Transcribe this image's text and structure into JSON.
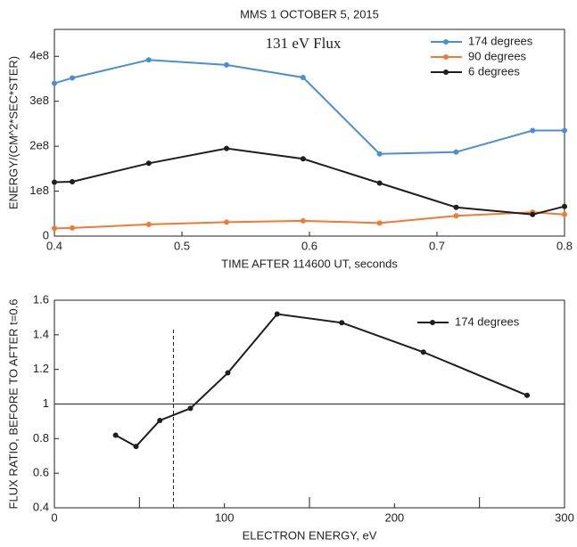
{
  "chart_data": [
    {
      "type": "line",
      "title": "MMS 1     OCTOBER 5, 2015",
      "annotation": "131 eV Flux",
      "x_label": "TIME AFTER 114600 UT, seconds",
      "y_label": "ENERGY/(CM^2*SEC*STER)",
      "x": [
        0.4,
        0.414,
        0.474,
        0.535,
        0.595,
        0.655,
        0.715,
        0.775,
        0.8
      ],
      "series": [
        {
          "name": "174 degrees",
          "color": "#4a8fd6",
          "values": [
            340000000,
            352000000,
            392000000,
            381000000,
            353000000,
            183000000,
            187000000,
            235000000,
            235000000
          ]
        },
        {
          "name": "90 degrees",
          "color": "#f07a35",
          "values": [
            17000000,
            18000000,
            26000000,
            31000000,
            34000000,
            29000000,
            45000000,
            53000000,
            48000000
          ]
        },
        {
          "name": "6 degrees",
          "color": "#1e1e1e",
          "values": [
            120000000,
            121000000,
            162000000,
            195000000,
            172000000,
            118000000,
            64000000,
            48000000,
            66000000
          ]
        }
      ],
      "xlim": [
        0.4,
        0.8
      ],
      "xticks": [
        0.4,
        0.5,
        0.6,
        0.7,
        0.8
      ],
      "ylim": [
        0,
        460000000
      ],
      "yticks": [
        0,
        {
          "value": 100000000,
          "label": "1e8"
        },
        {
          "value": 200000000,
          "label": "2e8"
        },
        {
          "value": 300000000,
          "label": "3e8"
        },
        {
          "value": 400000000,
          "label": "4e8"
        }
      ],
      "legend": "upper right"
    },
    {
      "type": "line",
      "x_label": "ELECTRON ENERGY, eV",
      "y_label": "FLUX RATIO, BEFORE TO AFTER t=0.6",
      "x": [
        36,
        48,
        62,
        80,
        102,
        131,
        169,
        217,
        278
      ],
      "series": [
        {
          "name": "174 degrees",
          "color": "#1e1e1e",
          "values": [
            0.82,
            0.755,
            0.905,
            0.975,
            1.18,
            1.52,
            1.47,
            1.3,
            1.05
          ]
        }
      ],
      "xlim": [
        0,
        300
      ],
      "xticks": [
        0,
        100,
        200,
        300
      ],
      "xminor": [
        50,
        150,
        250
      ],
      "ylim": [
        0.4,
        1.6
      ],
      "yticks": [
        0.4,
        0.6,
        0.8,
        1,
        1.2,
        1.4,
        1.6
      ],
      "hline": 1,
      "vline": {
        "x": 70,
        "y_end": 1.43
      },
      "legend": "upper right"
    }
  ]
}
